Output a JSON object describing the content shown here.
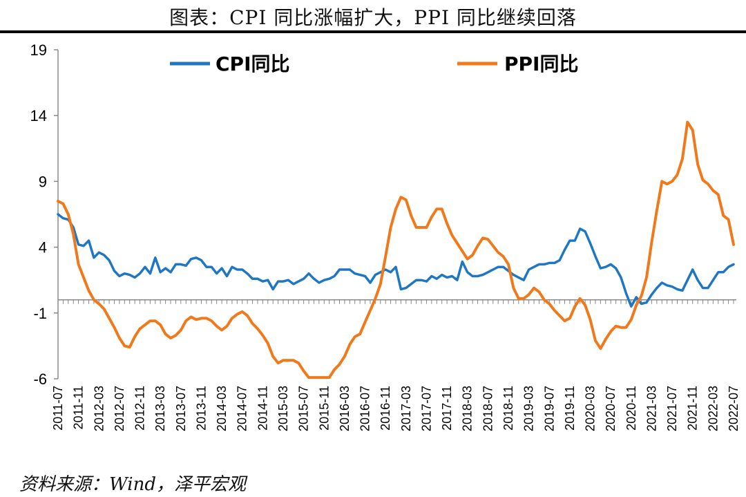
{
  "title": "图表：CPI 同比涨幅扩大，PPI 同比继续回落",
  "source": "资料来源：Wind，泽平宏观",
  "colors": {
    "cpi": "#1f77c4",
    "ppi": "#f07a1b"
  },
  "chart_data": {
    "type": "line",
    "ylim": [
      -6,
      19
    ],
    "yticks": [
      -6,
      -1,
      4,
      9,
      14,
      19
    ],
    "grid": false,
    "legend_position": "top",
    "x_tick_labels": [
      "2011-07",
      "2011-11",
      "2012-03",
      "2012-07",
      "2012-11",
      "2013-03",
      "2013-07",
      "2013-11",
      "2014-03",
      "2014-07",
      "2014-11",
      "2015-03",
      "2015-07",
      "2015-11",
      "2016-03",
      "2016-07",
      "2016-11",
      "2017-03",
      "2017-07",
      "2017-11",
      "2018-03",
      "2018-07",
      "2018-11",
      "2019-03",
      "2019-07",
      "2019-11",
      "2020-03",
      "2020-07",
      "2020-11",
      "2021-03",
      "2021-07",
      "2021-11",
      "2022-03",
      "2022-07"
    ],
    "x": [
      "2011-07",
      "2011-08",
      "2011-09",
      "2011-10",
      "2011-11",
      "2011-12",
      "2012-01",
      "2012-02",
      "2012-03",
      "2012-04",
      "2012-05",
      "2012-06",
      "2012-07",
      "2012-08",
      "2012-09",
      "2012-10",
      "2012-11",
      "2012-12",
      "2013-01",
      "2013-02",
      "2013-03",
      "2013-04",
      "2013-05",
      "2013-06",
      "2013-07",
      "2013-08",
      "2013-09",
      "2013-10",
      "2013-11",
      "2013-12",
      "2014-01",
      "2014-02",
      "2014-03",
      "2014-04",
      "2014-05",
      "2014-06",
      "2014-07",
      "2014-08",
      "2014-09",
      "2014-10",
      "2014-11",
      "2014-12",
      "2015-01",
      "2015-02",
      "2015-03",
      "2015-04",
      "2015-05",
      "2015-06",
      "2015-07",
      "2015-08",
      "2015-09",
      "2015-10",
      "2015-11",
      "2015-12",
      "2016-01",
      "2016-02",
      "2016-03",
      "2016-04",
      "2016-05",
      "2016-06",
      "2016-07",
      "2016-08",
      "2016-09",
      "2016-10",
      "2016-11",
      "2016-12",
      "2017-01",
      "2017-02",
      "2017-03",
      "2017-04",
      "2017-05",
      "2017-06",
      "2017-07",
      "2017-08",
      "2017-09",
      "2017-10",
      "2017-11",
      "2017-12",
      "2018-01",
      "2018-02",
      "2018-03",
      "2018-04",
      "2018-05",
      "2018-06",
      "2018-07",
      "2018-08",
      "2018-09",
      "2018-10",
      "2018-11",
      "2018-12",
      "2019-01",
      "2019-02",
      "2019-03",
      "2019-04",
      "2019-05",
      "2019-06",
      "2019-07",
      "2019-08",
      "2019-09",
      "2019-10",
      "2019-11",
      "2019-12",
      "2020-01",
      "2020-02",
      "2020-03",
      "2020-04",
      "2020-05",
      "2020-06",
      "2020-07",
      "2020-08",
      "2020-09",
      "2020-10",
      "2020-11",
      "2020-12",
      "2021-01",
      "2021-02",
      "2021-03",
      "2021-04",
      "2021-05",
      "2021-06",
      "2021-07",
      "2021-08",
      "2021-09",
      "2021-10",
      "2021-11",
      "2021-12",
      "2022-01",
      "2022-02",
      "2022-03",
      "2022-04",
      "2022-05",
      "2022-06",
      "2022-07"
    ],
    "series": [
      {
        "name": "CPI同比",
        "color": "#1f77c4",
        "values": [
          6.5,
          6.2,
          6.1,
          5.5,
          4.2,
          4.1,
          4.5,
          3.2,
          3.6,
          3.4,
          3.0,
          2.2,
          1.8,
          2.0,
          1.9,
          1.7,
          2.0,
          2.5,
          2.0,
          3.2,
          2.1,
          2.4,
          2.1,
          2.7,
          2.7,
          2.6,
          3.1,
          3.2,
          3.0,
          2.5,
          2.5,
          2.0,
          2.4,
          1.8,
          2.5,
          2.3,
          2.3,
          2.0,
          1.6,
          1.6,
          1.4,
          1.5,
          0.8,
          1.4,
          1.4,
          1.5,
          1.2,
          1.4,
          1.6,
          2.0,
          1.6,
          1.3,
          1.5,
          1.6,
          1.8,
          2.3,
          2.3,
          2.3,
          2.0,
          1.9,
          1.8,
          1.3,
          1.9,
          2.1,
          2.3,
          2.1,
          2.5,
          0.8,
          0.9,
          1.2,
          1.5,
          1.5,
          1.4,
          1.8,
          1.6,
          1.9,
          1.7,
          1.8,
          1.5,
          2.9,
          2.1,
          1.8,
          1.8,
          1.9,
          2.1,
          2.3,
          2.5,
          2.5,
          2.2,
          1.9,
          1.7,
          1.5,
          2.3,
          2.5,
          2.7,
          2.7,
          2.8,
          2.8,
          3.0,
          3.8,
          4.5,
          4.5,
          5.4,
          5.2,
          4.3,
          3.3,
          2.4,
          2.5,
          2.7,
          2.4,
          1.7,
          0.5,
          -0.5,
          0.2,
          -0.3,
          -0.2,
          0.4,
          0.9,
          1.3,
          1.1,
          1.0,
          0.8,
          0.7,
          1.5,
          2.3,
          1.5,
          0.9,
          0.9,
          1.5,
          2.1,
          2.1,
          2.5,
          2.7
        ]
      },
      {
        "name": "PPI同比",
        "color": "#f07a1b",
        "values": [
          7.5,
          7.3,
          6.5,
          5.0,
          2.7,
          1.7,
          0.7,
          0.0,
          -0.3,
          -0.7,
          -1.4,
          -2.1,
          -2.9,
          -3.5,
          -3.6,
          -2.8,
          -2.2,
          -1.9,
          -1.6,
          -1.6,
          -1.9,
          -2.6,
          -2.9,
          -2.7,
          -2.3,
          -1.6,
          -1.3,
          -1.5,
          -1.4,
          -1.4,
          -1.6,
          -2.0,
          -2.3,
          -2.0,
          -1.4,
          -1.1,
          -0.9,
          -1.2,
          -1.8,
          -2.2,
          -2.7,
          -3.3,
          -4.3,
          -4.8,
          -4.6,
          -4.6,
          -4.6,
          -4.8,
          -5.4,
          -5.9,
          -5.9,
          -5.9,
          -5.9,
          -5.9,
          -5.3,
          -4.9,
          -4.3,
          -3.4,
          -2.8,
          -2.6,
          -1.7,
          -0.8,
          0.1,
          1.2,
          3.3,
          5.5,
          6.9,
          7.8,
          7.6,
          6.4,
          5.5,
          5.5,
          5.5,
          6.3,
          6.9,
          6.9,
          5.8,
          4.9,
          4.3,
          3.7,
          3.1,
          3.4,
          4.1,
          4.7,
          4.6,
          4.1,
          3.6,
          3.3,
          2.7,
          0.9,
          0.1,
          0.1,
          0.4,
          0.9,
          0.6,
          0.0,
          -0.3,
          -0.8,
          -1.2,
          -1.6,
          -1.4,
          -0.5,
          0.1,
          -0.4,
          -1.5,
          -3.1,
          -3.7,
          -3.0,
          -2.4,
          -2.0,
          -2.1,
          -2.1,
          -1.5,
          -0.4,
          0.3,
          1.7,
          4.4,
          6.8,
          9.0,
          8.8,
          9.0,
          9.5,
          10.7,
          13.5,
          12.9,
          10.3,
          9.1,
          8.8,
          8.3,
          8.0,
          6.4,
          6.1,
          4.2
        ]
      }
    ]
  }
}
